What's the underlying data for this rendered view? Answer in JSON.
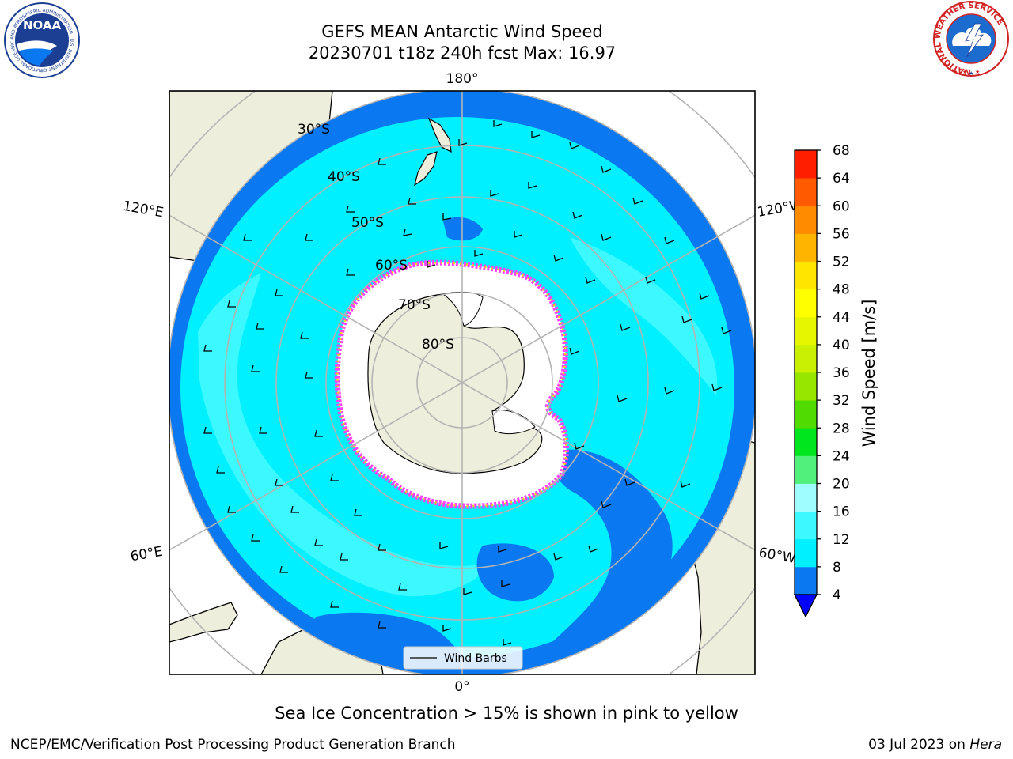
{
  "title": {
    "line1": "GEFS MEAN Antarctic Wind Speed",
    "line2": "20230701 t18z 240h fcst   Max: 16.97"
  },
  "map": {
    "projection": "south-polar-stereographic",
    "longitude_labels": {
      "top": "180°",
      "bottom": "0°",
      "upper_left": "120°E",
      "upper_right": "120°W",
      "lower_left": "60°E",
      "lower_right": "60°W"
    },
    "latitude_labels": [
      "30°S",
      "40°S",
      "50°S",
      "60°S",
      "70°S",
      "80°S"
    ],
    "legend_label": "Wind Barbs",
    "colors": {
      "land": "#eeeedc",
      "ice_shelf": "#ffffff",
      "wind_4_8": "#0a78f0",
      "wind_8_12": "#00f0ff",
      "wind_12_16": "#3cf8ff",
      "wind_16_20": "#a0fdff",
      "sea_ice_pink": "#ff40ff",
      "sea_ice_yellow": "#ffd400",
      "gridline": "#b4b4b4"
    }
  },
  "colorbar": {
    "label": "Wind Speed [m/s]",
    "ticks": [
      "4",
      "8",
      "12",
      "16",
      "20",
      "24",
      "28",
      "32",
      "36",
      "40",
      "44",
      "48",
      "52",
      "56",
      "60",
      "64",
      "68"
    ],
    "colors": [
      "#0a78f0",
      "#00f0ff",
      "#3cf8ff",
      "#a0fdff",
      "#50f07a",
      "#00e61e",
      "#50dc00",
      "#96e600",
      "#c8f000",
      "#e6f500",
      "#ffff00",
      "#ffe600",
      "#ffb400",
      "#ff8c00",
      "#ff5a00",
      "#ff1e00"
    ],
    "extend_color": "#0000ff"
  },
  "caption": "Sea Ice Concentration > 15% is shown in pink to yellow",
  "footer": {
    "left": "NCEP/EMC/Verification Post Processing Product Generation Branch",
    "right_date": "03 Jul 2023 on ",
    "right_host": "Hera"
  },
  "logos": {
    "noaa": {
      "text": "NOAA",
      "ring_text": "NATIONAL OCEANIC AND ATMOSPHERIC ADMINISTRATION · U.S. DEPARTMENT OF COMMERCE"
    },
    "nws": {
      "ring_text": "NATIONAL WEATHER SERVICE"
    }
  }
}
